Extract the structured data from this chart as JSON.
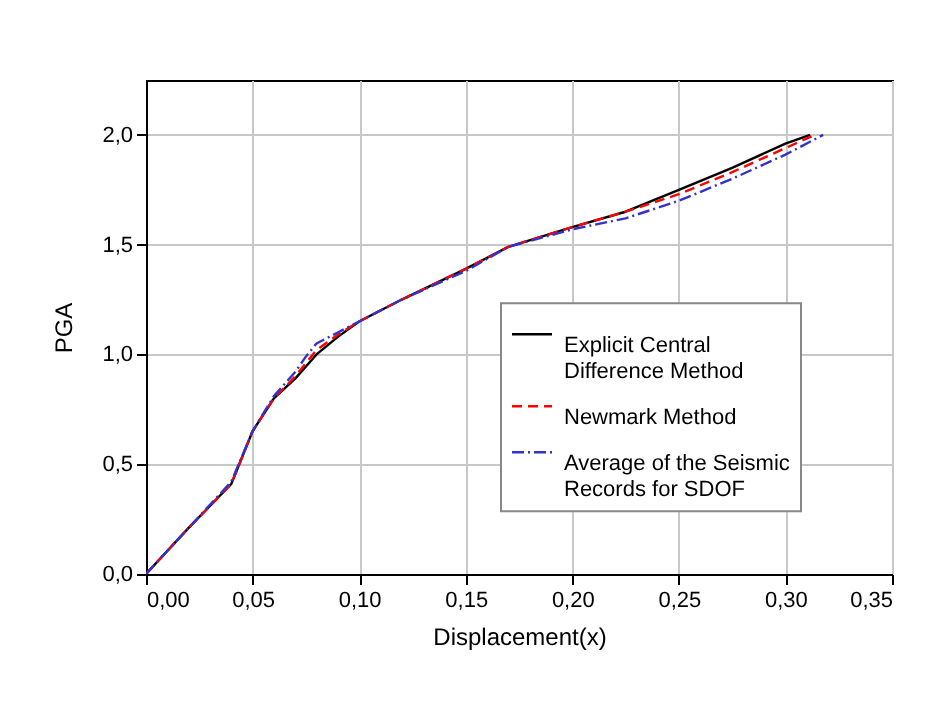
{
  "chart_data": {
    "type": "line",
    "xlabel": "Displacement(x)",
    "ylabel": "PGA",
    "xlim": [
      0,
      0.35
    ],
    "ylim": [
      0,
      2.25
    ],
    "xticks": [
      {
        "value": 0,
        "label": "0,00"
      },
      {
        "value": 0.05,
        "label": "0,05"
      },
      {
        "value": 0.1,
        "label": "0,10"
      },
      {
        "value": 0.15,
        "label": "0,15"
      },
      {
        "value": 0.2,
        "label": "0,20"
      },
      {
        "value": 0.25,
        "label": "0,25"
      },
      {
        "value": 0.3,
        "label": "0,30"
      },
      {
        "value": 0.35,
        "label": "0,35"
      }
    ],
    "yticks": [
      {
        "value": 0,
        "label": "0,0"
      },
      {
        "value": 0.5,
        "label": "0,5"
      },
      {
        "value": 1,
        "label": "1,0"
      },
      {
        "value": 1.5,
        "label": "1,5"
      },
      {
        "value": 2,
        "label": "2,0"
      }
    ],
    "grid": true,
    "legend": "right",
    "marker": "none",
    "series": [
      {
        "name": "Explicit Central Difference Method",
        "color": "#000000",
        "line_style": "solid",
        "x": [
          0,
          0.02,
          0.04,
          0.05,
          0.06,
          0.07,
          0.08,
          0.09,
          0.1,
          0.12,
          0.15,
          0.17,
          0.2,
          0.225,
          0.25,
          0.275,
          0.3,
          0.3116
        ],
        "values": [
          0,
          0.21,
          0.41,
          0.65,
          0.8,
          0.89,
          1.0,
          1.08,
          1.15,
          1.25,
          1.39,
          1.49,
          1.58,
          1.65,
          1.75,
          1.85,
          1.96,
          2.0
        ]
      },
      {
        "name": "Newmark Method",
        "color": "#ff0000",
        "line_style": "dashed",
        "x": [
          0,
          0.02,
          0.04,
          0.05,
          0.06,
          0.07,
          0.08,
          0.09,
          0.1,
          0.12,
          0.15,
          0.17,
          0.2,
          0.225,
          0.25,
          0.275,
          0.3,
          0.3138
        ],
        "values": [
          0,
          0.21,
          0.41,
          0.65,
          0.8,
          0.9,
          1.02,
          1.09,
          1.15,
          1.25,
          1.39,
          1.49,
          1.58,
          1.65,
          1.73,
          1.83,
          1.94,
          2.0
        ]
      },
      {
        "name": "Average of the Seismic Records for SDOF",
        "color": "#3333cc",
        "line_style": "dashed-dotted",
        "x": [
          0,
          0.02,
          0.04,
          0.05,
          0.06,
          0.07,
          0.075,
          0.08,
          0.09,
          0.1,
          0.12,
          0.15,
          0.17,
          0.2,
          0.225,
          0.25,
          0.275,
          0.3,
          0.3177
        ],
        "values": [
          0,
          0.21,
          0.42,
          0.65,
          0.81,
          0.92,
          0.99,
          1.05,
          1.1,
          1.15,
          1.25,
          1.38,
          1.49,
          1.57,
          1.62,
          1.7,
          1.8,
          1.91,
          2.0
        ]
      }
    ]
  }
}
